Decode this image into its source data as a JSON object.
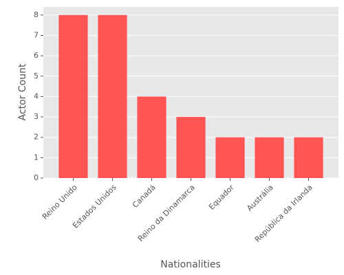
{
  "chart_data": {
    "type": "bar",
    "x_label": "Nationalities",
    "y_label": "Actor Count",
    "categories": [
      "Reino Unido",
      "Estados Unidos",
      "Canadá",
      "Reino da Dinamarca",
      "Equador",
      "Austrália",
      "República da Irlanda"
    ],
    "values": [
      8,
      8,
      4,
      3,
      2,
      2,
      2
    ],
    "color": "#ff5555",
    "ylim": [
      0,
      8.4
    ],
    "yticks": [
      0,
      1,
      2,
      3,
      4,
      5,
      6,
      7,
      8
    ],
    "grid": true
  }
}
